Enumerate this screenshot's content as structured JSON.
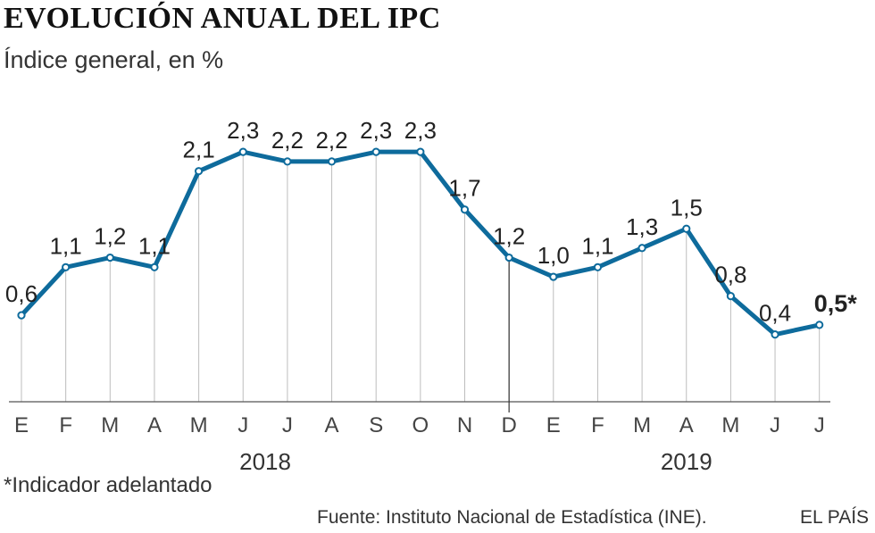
{
  "chart_data": {
    "type": "line",
    "title": "EVOLUCIÓN ANUAL DEL IPC",
    "subtitle": "Índice general, en %",
    "categories": [
      "E",
      "F",
      "M",
      "A",
      "M",
      "J",
      "J",
      "A",
      "S",
      "O",
      "N",
      "D",
      "E",
      "F",
      "M",
      "A",
      "M",
      "J",
      "J"
    ],
    "years": [
      {
        "label": "2018",
        "start_index": 0,
        "end_index": 11
      },
      {
        "label": "2019",
        "start_index": 12,
        "end_index": 18
      }
    ],
    "series": [
      {
        "name": "IPC",
        "color": "#0e6b9c",
        "values": [
          0.6,
          1.1,
          1.2,
          1.1,
          2.1,
          2.3,
          2.2,
          2.2,
          2.3,
          2.3,
          1.7,
          1.2,
          1.0,
          1.1,
          1.3,
          1.5,
          0.8,
          0.4,
          0.5
        ]
      }
    ],
    "value_labels": [
      "0,6",
      "1,1",
      "1,2",
      "1,1",
      "2,1",
      "2,3",
      "2,2",
      "2,2",
      "2,3",
      "2,3",
      "1,7",
      "1,2",
      "1,0",
      "1,1",
      "1,3",
      "1,5",
      "0,8",
      "0,4",
      "0,5*"
    ],
    "highlight_index": 18,
    "ylim": [
      -0.3,
      2.45
    ],
    "xlabel": "",
    "ylabel": ""
  },
  "footnote": "*Indicador adelantado",
  "source": "Fuente: Instituto Nacional de Estadística (INE).",
  "brand": "EL PAÍS"
}
